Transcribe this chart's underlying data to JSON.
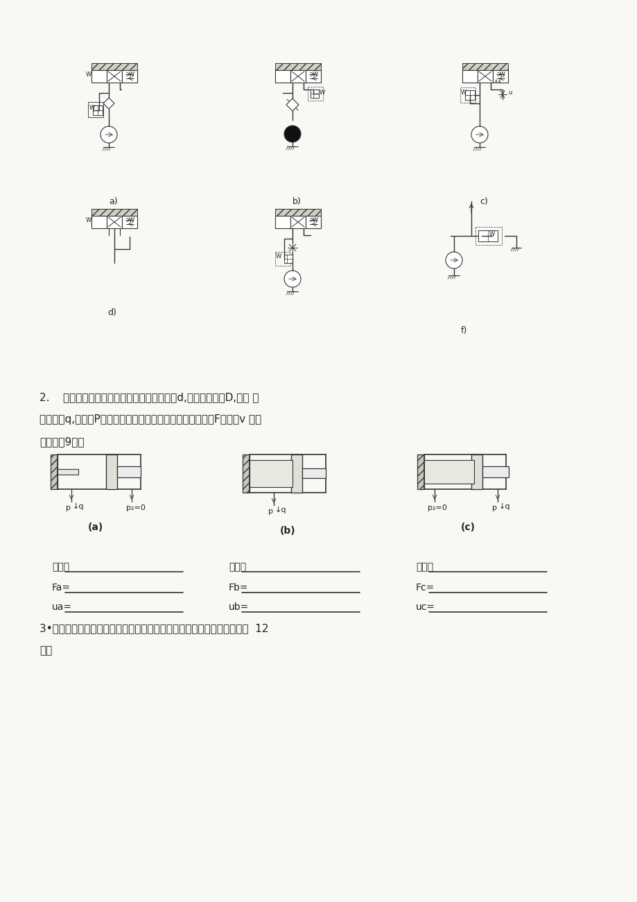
{
  "page_bg": "#f8f8f5",
  "line_color": "#333333",
  "text_color": "#222222",
  "q2_line1": "2.    下图所示的三个液压缸的活塞杆直径均为d,活塞直径均为D,已知 输",
  "q2_line2": "入流量为q,压力为P，分析各缸运动件的运动方向及写出推力F和速度v 的表",
  "q2_line3": "达式。（9分）",
  "diag_a": "(a)",
  "diag_b": "(b)",
  "diag_c": "(c)",
  "row1": [
    "方向：",
    "方向：",
    "方向："
  ],
  "row2": [
    "Fa=",
    "Fb=",
    "Fc="
  ],
  "row3": [
    "ua=",
    "ub=",
    "uc="
  ],
  "ann_a1": "p",
  "ann_a2": "q",
  "ann_a3": "p₂=0",
  "ann_b1": "p",
  "ann_b2": "q",
  "ann_c1": "p₂=0",
  "ann_c2": "p",
  "ann_c3": "q",
  "q3_line1": "3•什么是液压基本回路？常见的液压基本回路有几类？各起什么作用？（  12",
  "q3_line2": "分）",
  "label_a": "a)",
  "label_b": "b)",
  "label_c": "c)",
  "label_d": "d)",
  "label_f": "f)"
}
